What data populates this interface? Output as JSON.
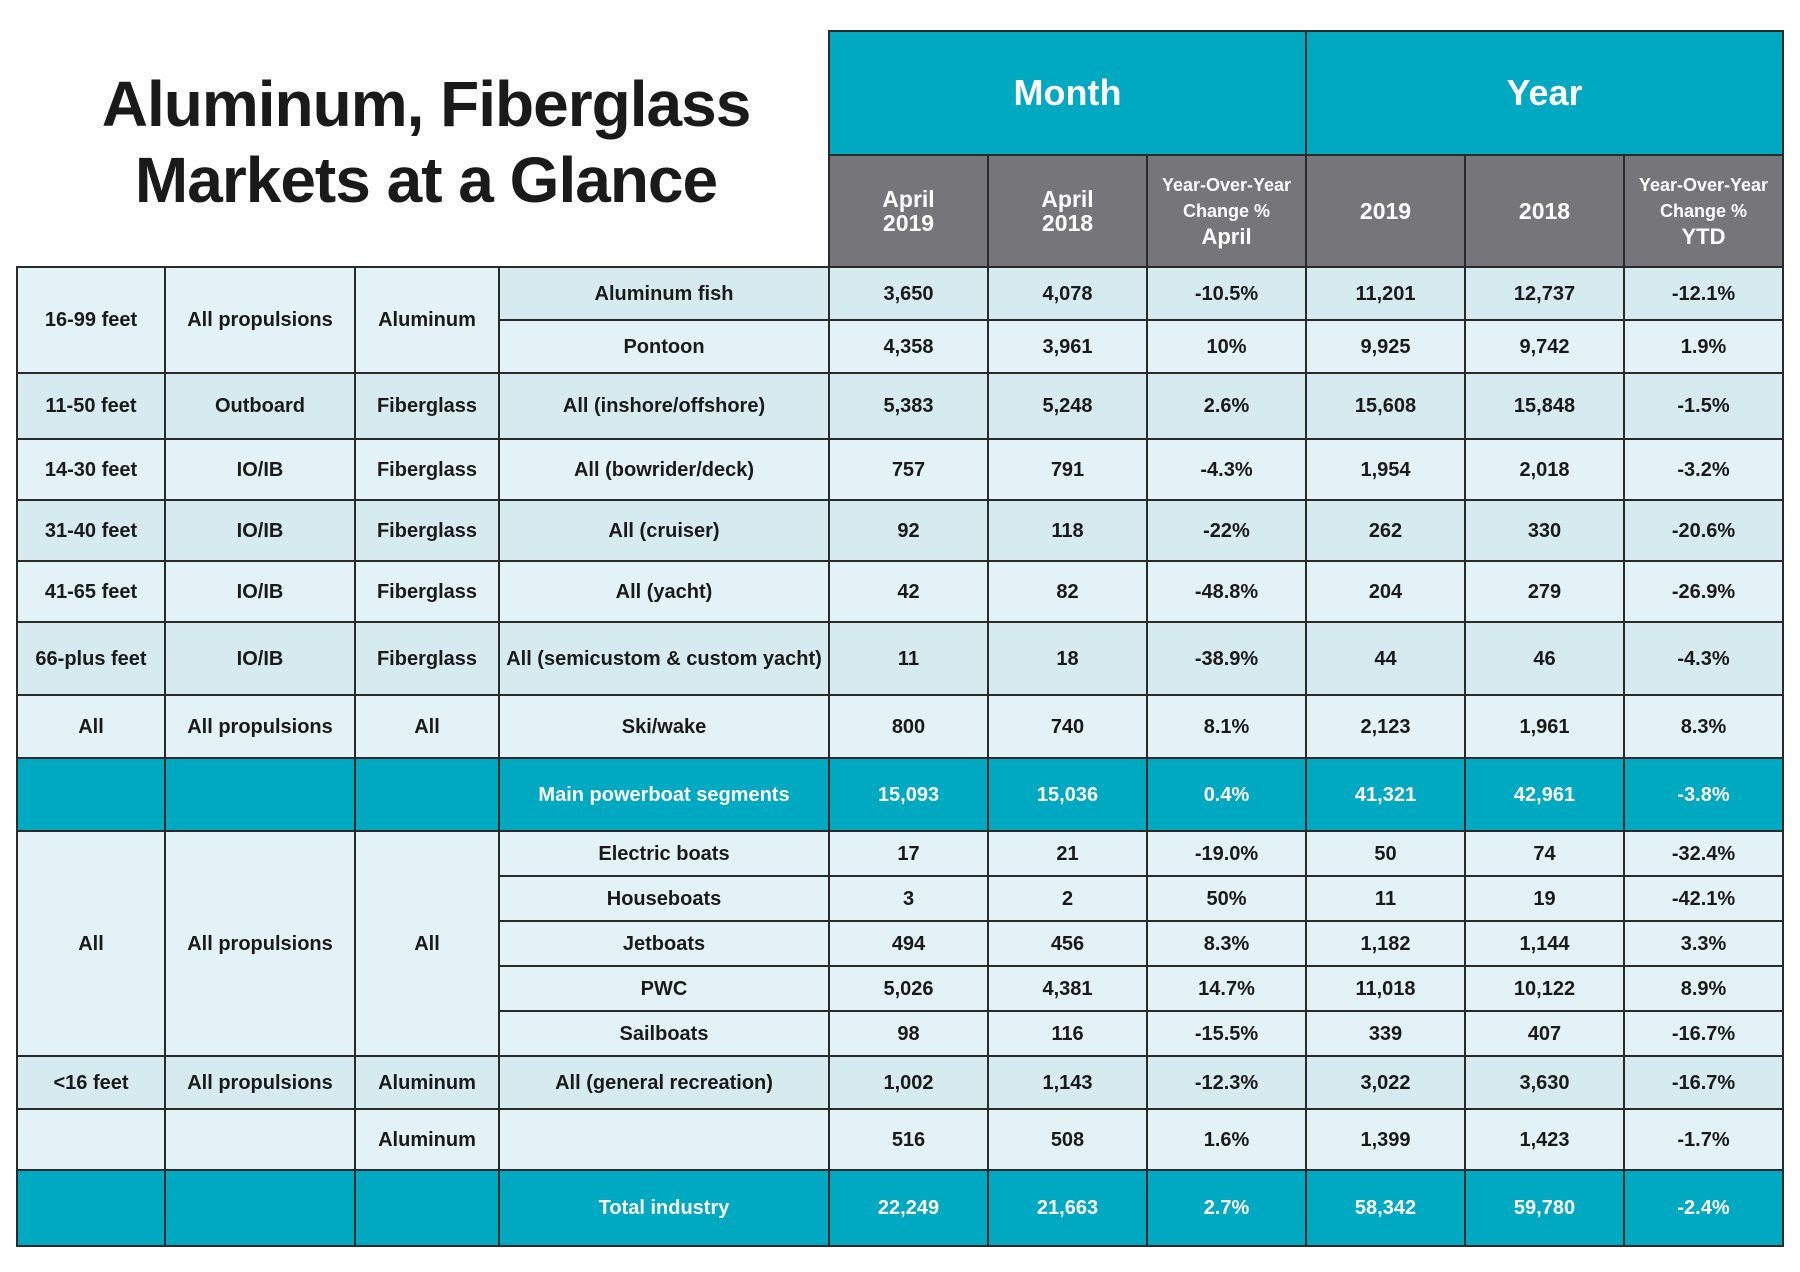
{
  "title_line1": "Aluminum, Fiberglass",
  "title_line2": "Markets at a Glance",
  "groups": {
    "month": "Month",
    "year": "Year"
  },
  "columns": {
    "m_cur_1": "April",
    "m_cur_2": "2019",
    "m_prev_1": "April",
    "m_prev_2": "2018",
    "m_chg_1": "Year-Over-Year",
    "m_chg_2": "Change %",
    "m_chg_3": "April",
    "y_cur": "2019",
    "y_prev": "2018",
    "y_chg_1": "Year-Over-Year",
    "y_chg_2": "Change %",
    "y_chg_3": "YTD"
  },
  "colors": {
    "teal": "#00a9c2",
    "gray_header": "#76767a",
    "light_row": "#d6ebf0"
  },
  "rows": [
    {
      "size": "16-99 feet",
      "prop": "All propulsions",
      "mat": "Aluminum",
      "seg": "Aluminum fish",
      "m19": "3,650",
      "m18": "4,078",
      "mchg": "-10.5%",
      "y19": "11,201",
      "y18": "12,737",
      "ychg": "-12.1%"
    },
    {
      "seg": "Pontoon",
      "m19": "4,358",
      "m18": "3,961",
      "mchg": "10%",
      "y19": "9,925",
      "y18": "9,742",
      "ychg": "1.9%"
    },
    {
      "size": "11-50 feet",
      "prop": "Outboard",
      "mat": "Fiberglass",
      "seg": "All (inshore/offshore)",
      "m19": "5,383",
      "m18": "5,248",
      "mchg": "2.6%",
      "y19": "15,608",
      "y18": "15,848",
      "ychg": "-1.5%"
    },
    {
      "size": "14-30 feet",
      "prop": "IO/IB",
      "mat": "Fiberglass",
      "seg": "All (bowrider/deck)",
      "m19": "757",
      "m18": "791",
      "mchg": "-4.3%",
      "y19": "1,954",
      "y18": "2,018",
      "ychg": "-3.2%"
    },
    {
      "size": "31-40 feet",
      "prop": "IO/IB",
      "mat": "Fiberglass",
      "seg": "All (cruiser)",
      "m19": "92",
      "m18": "118",
      "mchg": "-22%",
      "y19": "262",
      "y18": "330",
      "ychg": "-20.6%"
    },
    {
      "size": "41-65 feet",
      "prop": "IO/IB",
      "mat": "Fiberglass",
      "seg": "All (yacht)",
      "m19": "42",
      "m18": "82",
      "mchg": "-48.8%",
      "y19": "204",
      "y18": "279",
      "ychg": "-26.9%"
    },
    {
      "size": "66-plus feet",
      "prop": "IO/IB",
      "mat": "Fiberglass",
      "seg": "All (semicustom & custom yacht)",
      "m19": "11",
      "m18": "18",
      "mchg": "-38.9%",
      "y19": "44",
      "y18": "46",
      "ychg": "-4.3%"
    },
    {
      "size": "All",
      "prop": "All propulsions",
      "mat": "All",
      "seg": "Ski/wake",
      "m19": "800",
      "m18": "740",
      "mchg": "8.1%",
      "y19": "2,123",
      "y18": "1,961",
      "ychg": "8.3%"
    },
    {
      "seg": "Main powerboat segments",
      "m19": "15,093",
      "m18": "15,036",
      "mchg": "0.4%",
      "y19": "41,321",
      "y18": "42,961",
      "ychg": "-3.8%"
    },
    {
      "size": "All",
      "prop": "All propulsions",
      "mat": "All",
      "seg": "Electric boats",
      "m19": "17",
      "m18": "21",
      "mchg": "-19.0%",
      "y19": "50",
      "y18": "74",
      "ychg": "-32.4%"
    },
    {
      "seg": "Houseboats",
      "m19": "3",
      "m18": "2",
      "mchg": "50%",
      "y19": "11",
      "y18": "19",
      "ychg": "-42.1%"
    },
    {
      "seg": "Jetboats",
      "m19": "494",
      "m18": "456",
      "mchg": "8.3%",
      "y19": "1,182",
      "y18": "1,144",
      "ychg": "3.3%"
    },
    {
      "seg": "PWC",
      "m19": "5,026",
      "m18": "4,381",
      "mchg": "14.7%",
      "y19": "11,018",
      "y18": "10,122",
      "ychg": "8.9%"
    },
    {
      "seg": "Sailboats",
      "m19": "98",
      "m18": "116",
      "mchg": "-15.5%",
      "y19": "339",
      "y18": "407",
      "ychg": "-16.7%"
    },
    {
      "size": "<16 feet",
      "prop": "All propulsions",
      "mat": "Aluminum",
      "seg": "All (general recreation)",
      "m19": "1,002",
      "m18": "1,143",
      "mchg": "-12.3%",
      "y19": "3,022",
      "y18": "3,630",
      "ychg": "-16.7%"
    },
    {
      "mat": "Aluminum",
      "m19": "516",
      "m18": "508",
      "mchg": "1.6%",
      "y19": "1,399",
      "y18": "1,423",
      "ychg": "-1.7%"
    },
    {
      "seg": "Total industry",
      "m19": "22,249",
      "m18": "21,663",
      "mchg": "2.7%",
      "y19": "58,342",
      "y18": "59,780",
      "ychg": "-2.4%"
    }
  ]
}
